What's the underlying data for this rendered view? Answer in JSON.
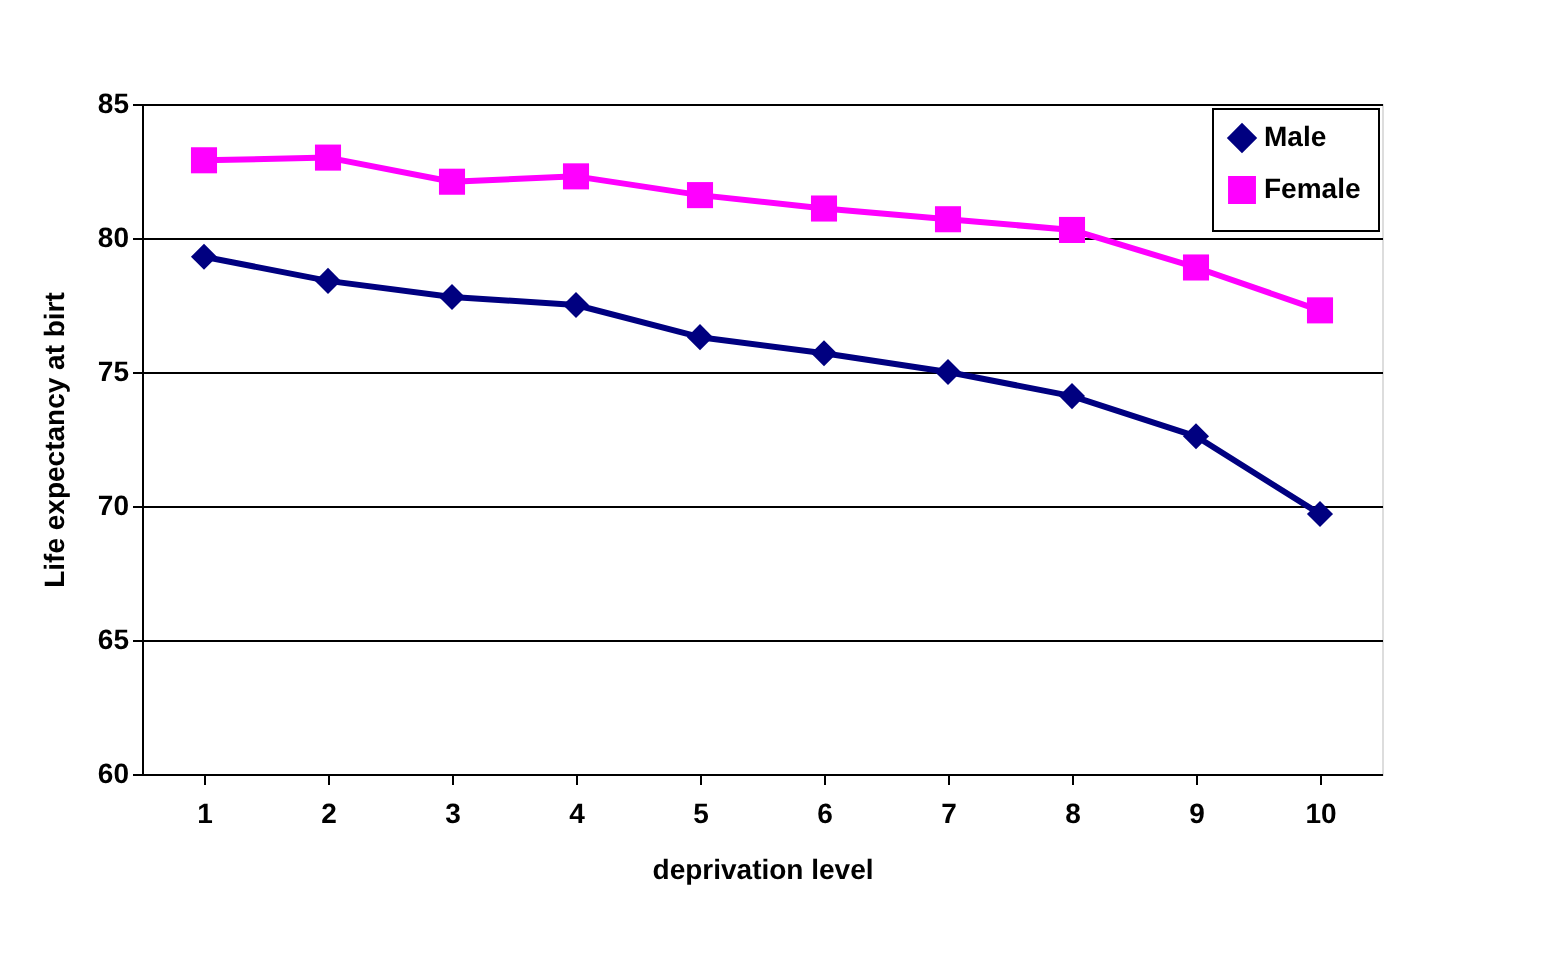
{
  "chart_data": {
    "type": "line",
    "xlabel": "deprivation level",
    "ylabel": "Life expectancy at birt",
    "categories": [
      "1",
      "2",
      "3",
      "4",
      "5",
      "6",
      "7",
      "8",
      "9",
      "10"
    ],
    "series": [
      {
        "name": "Male",
        "color": "#000080",
        "marker": "diamond",
        "values": [
          79.3,
          78.4,
          77.8,
          77.5,
          76.3,
          75.7,
          75.0,
          74.1,
          72.6,
          69.7
        ]
      },
      {
        "name": "Female",
        "color": "#ff00ff",
        "marker": "square",
        "values": [
          82.9,
          83.0,
          82.1,
          82.3,
          81.6,
          81.1,
          80.7,
          80.3,
          78.9,
          77.3
        ]
      }
    ],
    "ylim": [
      60,
      85
    ],
    "yticks": [
      60,
      65,
      70,
      75,
      80,
      85
    ],
    "grid": "y",
    "legend": "top right"
  }
}
